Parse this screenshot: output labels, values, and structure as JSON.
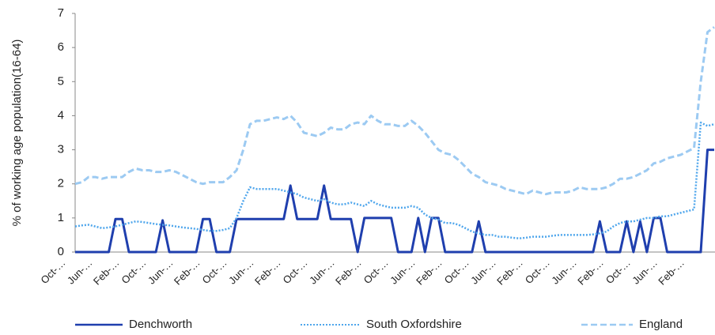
{
  "chart_data": {
    "type": "line",
    "y_label": "% of working age population(16-64)",
    "categories": [
      "Oct-…",
      null,
      null,
      null,
      "Jun-…",
      null,
      null,
      null,
      "Feb-…",
      null,
      null,
      null,
      "Oct-…",
      null,
      null,
      null,
      "Jun-…",
      null,
      null,
      null,
      "Feb-…",
      null,
      null,
      null,
      "Oct-…",
      null,
      null,
      null,
      "Jun-…",
      null,
      null,
      null,
      "Feb-…",
      null,
      null,
      null,
      "Oct-…",
      null,
      null,
      null,
      "Jun-…",
      null,
      null,
      null,
      "Feb-…",
      null,
      null,
      null,
      "Oct-…",
      null,
      null,
      null,
      "Jun-…",
      null,
      null,
      null,
      "Feb-…",
      null,
      null,
      null,
      "Oct-…",
      null,
      null,
      null,
      "Jun-…",
      null,
      null,
      null,
      "Feb-…",
      null,
      null,
      null,
      "Oct-…",
      null,
      null,
      null,
      "Jun-…",
      null,
      null,
      null,
      "Feb-…",
      null,
      null,
      null,
      "Oct-…",
      null,
      null,
      null,
      "Jun-…",
      null,
      null,
      null,
      "Feb-…",
      null,
      null,
      null
    ],
    "series": [
      {
        "name": "Denchworth",
        "color": "#1f3fae",
        "style": "solid",
        "values": [
          0,
          0,
          0,
          0,
          0,
          0,
          0.97,
          0.97,
          0,
          0,
          0,
          0,
          0,
          0.93,
          0,
          0,
          0,
          0,
          0,
          0.97,
          0.97,
          0,
          0,
          0,
          0.97,
          0.97,
          0.97,
          0.97,
          0.97,
          0.97,
          0.97,
          0.97,
          1.95,
          0.97,
          0.97,
          0.97,
          0.97,
          1.95,
          0.97,
          0.97,
          0.97,
          0.97,
          0,
          1,
          1,
          1,
          1,
          1,
          0,
          0,
          0,
          1,
          0,
          1,
          1,
          0,
          0,
          0,
          0,
          0,
          0.9,
          0,
          0,
          0,
          0,
          0,
          0,
          0,
          0,
          0,
          0,
          0,
          0,
          0,
          0,
          0,
          0,
          0,
          0.9,
          0,
          0,
          0,
          0.9,
          0,
          0.9,
          0,
          1,
          1,
          0,
          0,
          0,
          0,
          0,
          0,
          3,
          3
        ]
      },
      {
        "name": "South Oxfordshire",
        "color": "#4fa6ec",
        "style": "dotted",
        "values": [
          0.75,
          0.78,
          0.8,
          0.75,
          0.7,
          0.72,
          0.75,
          0.8,
          0.85,
          0.9,
          0.88,
          0.85,
          0.82,
          0.8,
          0.78,
          0.75,
          0.72,
          0.7,
          0.68,
          0.65,
          0.62,
          0.62,
          0.65,
          0.7,
          1.0,
          1.5,
          1.9,
          1.85,
          1.85,
          1.85,
          1.85,
          1.8,
          1.75,
          1.7,
          1.6,
          1.55,
          1.5,
          1.55,
          1.45,
          1.4,
          1.4,
          1.45,
          1.4,
          1.35,
          1.5,
          1.4,
          1.35,
          1.3,
          1.3,
          1.3,
          1.35,
          1.3,
          1.1,
          1.0,
          0.95,
          0.85,
          0.85,
          0.8,
          0.7,
          0.6,
          0.55,
          0.5,
          0.5,
          0.45,
          0.45,
          0.42,
          0.4,
          0.42,
          0.45,
          0.45,
          0.45,
          0.48,
          0.5,
          0.5,
          0.5,
          0.5,
          0.5,
          0.52,
          0.55,
          0.6,
          0.75,
          0.85,
          0.9,
          0.9,
          0.95,
          1.0,
          1.0,
          1.05,
          1.05,
          1.1,
          1.15,
          1.2,
          1.25,
          3.8,
          3.7,
          3.75
        ]
      },
      {
        "name": "England",
        "color": "#9ccaf2",
        "style": "dashed",
        "values": [
          2.0,
          2.05,
          2.2,
          2.2,
          2.15,
          2.2,
          2.2,
          2.2,
          2.35,
          2.45,
          2.4,
          2.4,
          2.35,
          2.35,
          2.4,
          2.35,
          2.25,
          2.15,
          2.05,
          2.0,
          2.05,
          2.05,
          2.05,
          2.2,
          2.4,
          3.0,
          3.75,
          3.85,
          3.85,
          3.9,
          3.95,
          3.9,
          4.0,
          3.8,
          3.5,
          3.45,
          3.4,
          3.5,
          3.65,
          3.6,
          3.6,
          3.75,
          3.8,
          3.75,
          4.0,
          3.85,
          3.75,
          3.75,
          3.7,
          3.7,
          3.85,
          3.7,
          3.5,
          3.25,
          3.0,
          2.9,
          2.85,
          2.7,
          2.5,
          2.3,
          2.2,
          2.05,
          2.0,
          1.95,
          1.85,
          1.8,
          1.75,
          1.7,
          1.8,
          1.75,
          1.7,
          1.75,
          1.75,
          1.75,
          1.8,
          1.9,
          1.85,
          1.85,
          1.85,
          1.9,
          2.0,
          2.15,
          2.15,
          2.2,
          2.3,
          2.4,
          2.6,
          2.65,
          2.75,
          2.8,
          2.85,
          2.95,
          3.05,
          5.0,
          6.45,
          6.6
        ]
      }
    ],
    "ylim": [
      0,
      7
    ],
    "yticks": [
      0,
      1,
      2,
      3,
      4,
      5,
      6,
      7
    ],
    "grid": false,
    "legend": "bottom"
  }
}
